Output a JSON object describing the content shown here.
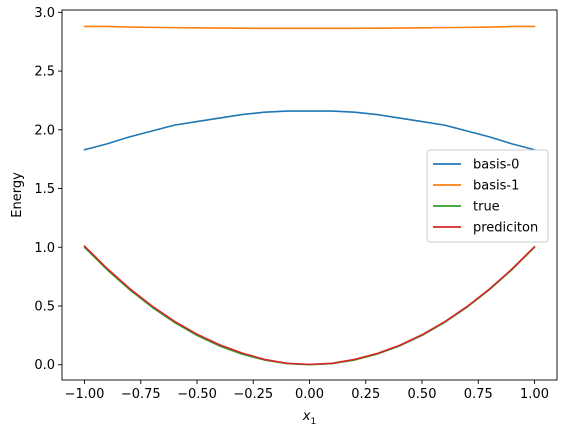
{
  "chart_data": {
    "type": "line",
    "xlabel": "x",
    "xlabel_sub": "1",
    "ylabel": "Energy",
    "xlim": [
      -1.1,
      1.1
    ],
    "ylim": [
      -0.13,
      3.02
    ],
    "xticks": [
      -1.0,
      -0.75,
      -0.5,
      -0.25,
      0.0,
      0.25,
      0.5,
      0.75,
      1.0
    ],
    "xtick_labels": [
      "−1.00",
      "−0.75",
      "−0.50",
      "−0.25",
      "0.00",
      "0.25",
      "0.50",
      "0.75",
      "1.00"
    ],
    "yticks": [
      0.0,
      0.5,
      1.0,
      1.5,
      2.0,
      2.5,
      3.0
    ],
    "ytick_labels": [
      "0.0",
      "0.5",
      "1.0",
      "1.5",
      "2.0",
      "2.5",
      "3.0"
    ],
    "grid": false,
    "legend": {
      "placement": "center-right",
      "labels": [
        "basis-0",
        "basis-1",
        "true",
        "prediciton"
      ]
    },
    "x": [
      -1.0,
      -0.9,
      -0.8,
      -0.7,
      -0.6,
      -0.5,
      -0.4,
      -0.3,
      -0.2,
      -0.1,
      0.0,
      0.1,
      0.2,
      0.3,
      0.4,
      0.5,
      0.6,
      0.7,
      0.8,
      0.9,
      1.0
    ],
    "series": [
      {
        "name": "basis-0",
        "color": "#1f77b4",
        "values": [
          1.83,
          1.88,
          1.94,
          1.99,
          2.04,
          2.07,
          2.1,
          2.13,
          2.15,
          2.16,
          2.16,
          2.16,
          2.15,
          2.13,
          2.1,
          2.07,
          2.04,
          1.99,
          1.94,
          1.88,
          1.83
        ]
      },
      {
        "name": "basis-1",
        "color": "#ff7f0e",
        "values": [
          2.88,
          2.88,
          2.875,
          2.872,
          2.87,
          2.868,
          2.866,
          2.865,
          2.864,
          2.864,
          2.864,
          2.864,
          2.864,
          2.865,
          2.866,
          2.868,
          2.87,
          2.872,
          2.875,
          2.88,
          2.88
        ]
      },
      {
        "name": "true",
        "color": "#2ca02c",
        "values": [
          1.0,
          0.81,
          0.64,
          0.49,
          0.36,
          0.25,
          0.16,
          0.09,
          0.04,
          0.01,
          0.0,
          0.01,
          0.04,
          0.09,
          0.16,
          0.25,
          0.36,
          0.49,
          0.64,
          0.81,
          1.0
        ]
      },
      {
        "name": "prediciton",
        "color": "#d62728",
        "values": [
          1.01,
          0.82,
          0.65,
          0.5,
          0.37,
          0.26,
          0.17,
          0.1,
          0.045,
          0.012,
          0.003,
          0.012,
          0.045,
          0.095,
          0.165,
          0.255,
          0.365,
          0.495,
          0.645,
          0.815,
          1.005
        ]
      }
    ]
  }
}
